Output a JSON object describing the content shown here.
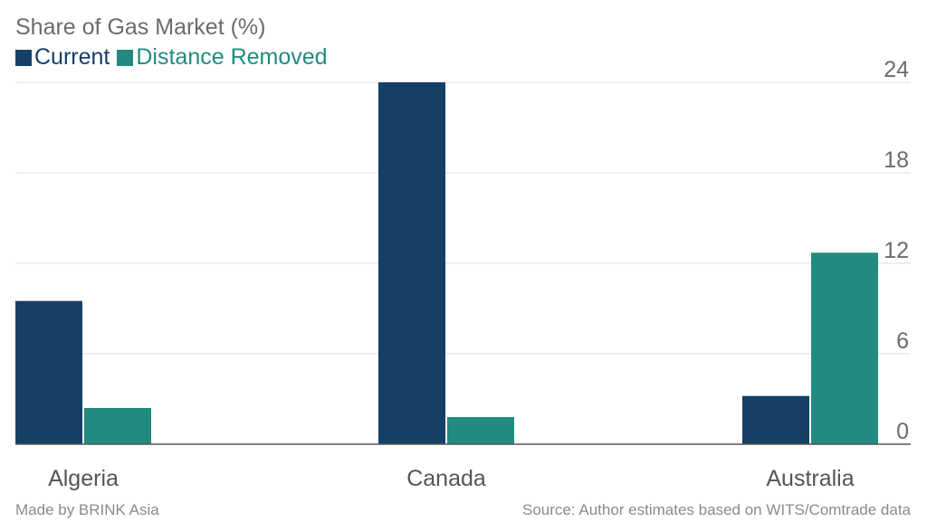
{
  "title": "Share of Gas Market (%)",
  "legend": [
    {
      "label": "Current",
      "color": "#163f66"
    },
    {
      "label": "Distance Removed",
      "color": "#238a80"
    }
  ],
  "footer": {
    "left": "Made by BRINK Asia",
    "right": "Source: Author estimates based on WITS/Comtrade data"
  },
  "chart_data": {
    "type": "bar",
    "title": "Share of Gas Market (%)",
    "categories": [
      "Algeria",
      "Canada",
      "Australia"
    ],
    "series": [
      {
        "name": "Current",
        "values": [
          9.5,
          24.0,
          3.2
        ],
        "color": "#163f66"
      },
      {
        "name": "Distance Removed",
        "values": [
          2.4,
          1.8,
          12.7
        ],
        "color": "#238a80"
      }
    ],
    "yticks": [
      0,
      6,
      12,
      18,
      24
    ],
    "ylim": [
      0,
      24
    ],
    "ylabel": "",
    "xlabel": "",
    "grid": true,
    "y_axis_position": "right"
  }
}
